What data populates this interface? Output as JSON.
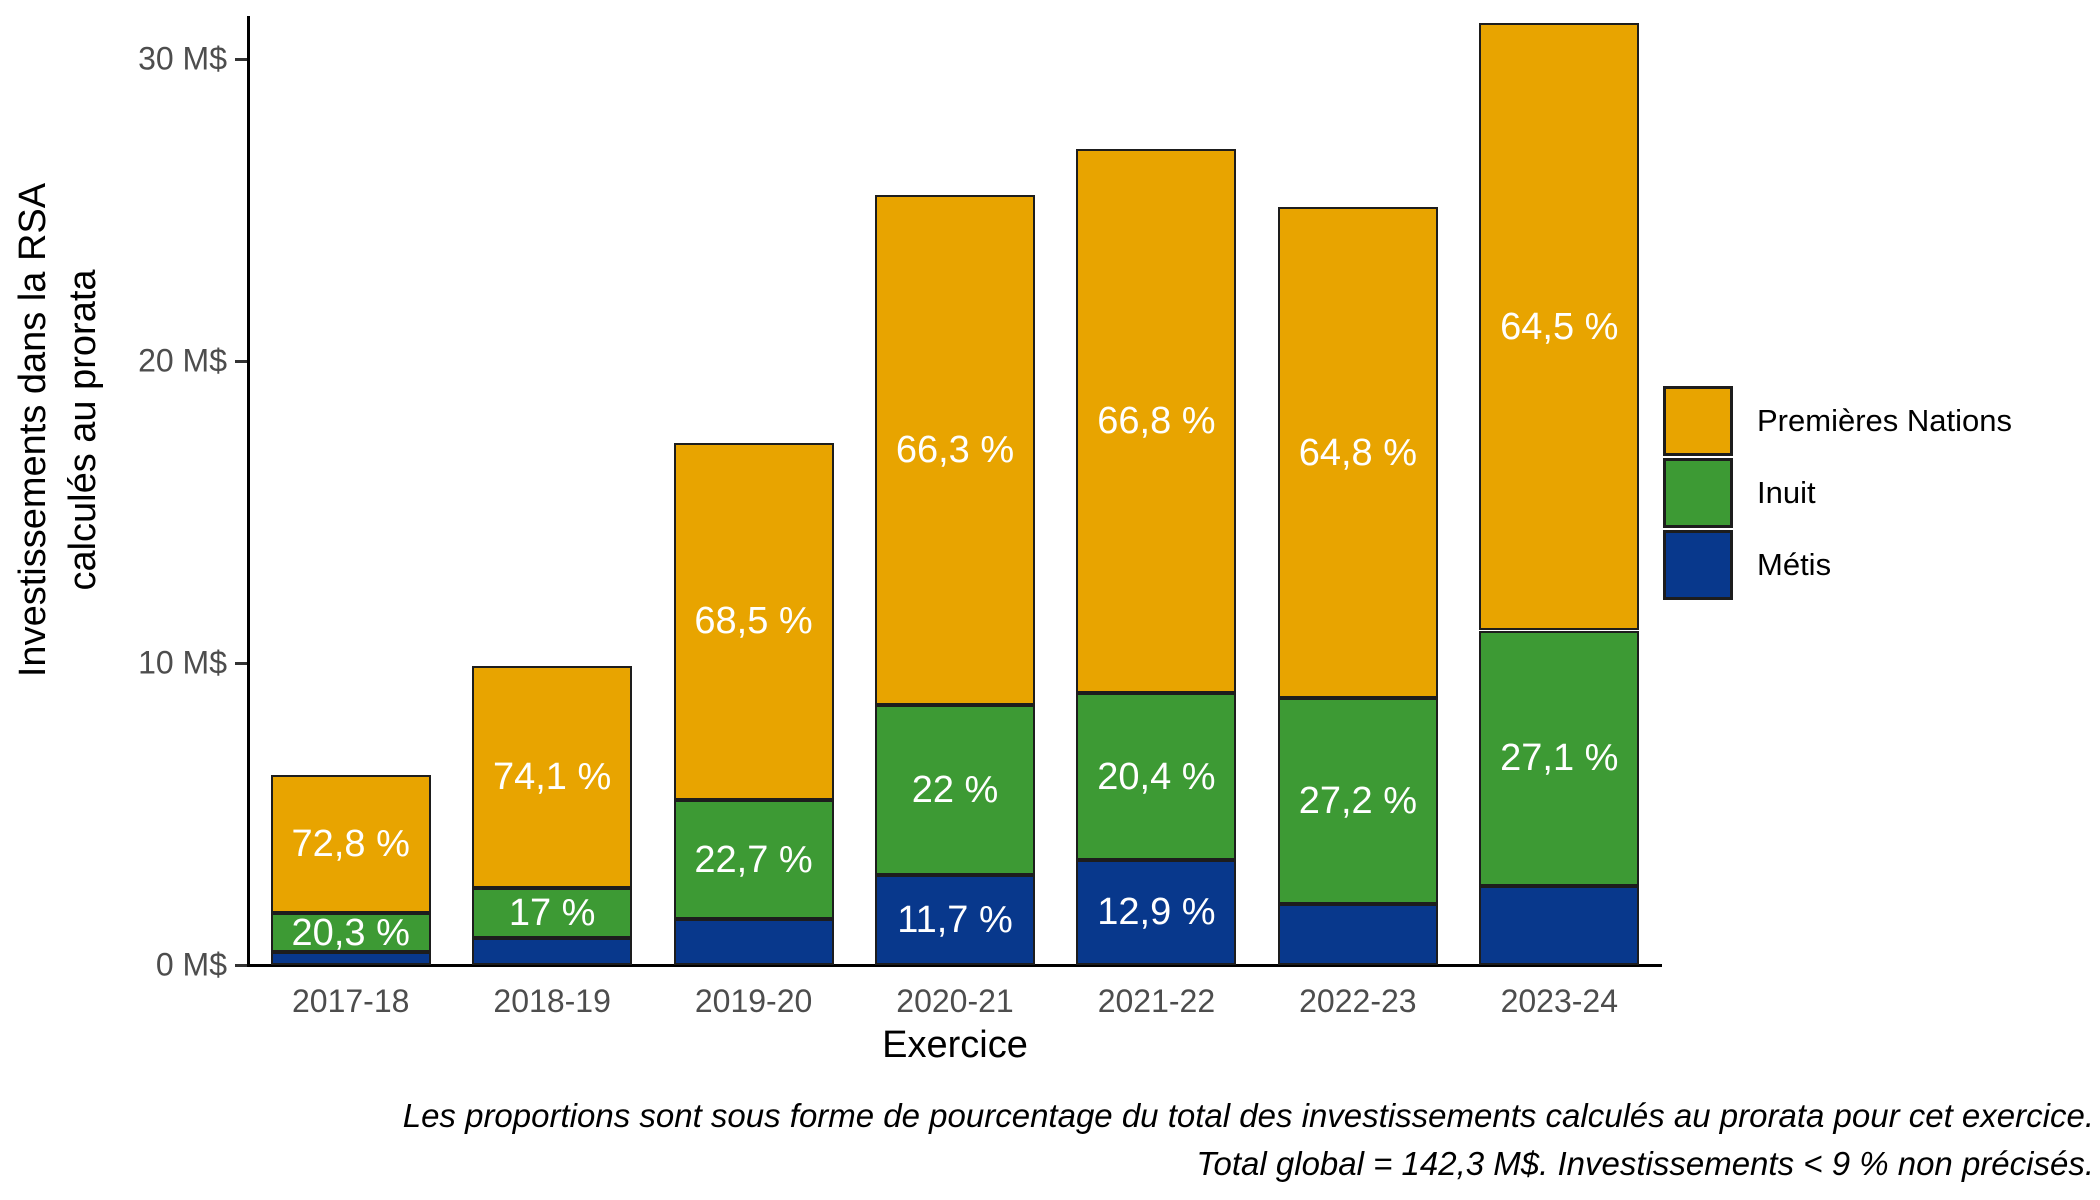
{
  "chart_data": {
    "type": "bar",
    "stacked": true,
    "xlabel": "Exercice",
    "ylabel_line1": "Investissements dans la RSA",
    "ylabel_line2": "calculés au prorata",
    "unit": "M$",
    "categories": [
      "2017-18",
      "2018-19",
      "2019-20",
      "2020-21",
      "2021-22",
      "2022-23",
      "2023-24"
    ],
    "totals_m": [
      6.3,
      9.9,
      17.3,
      25.5,
      27.0,
      25.1,
      31.2
    ],
    "series": [
      {
        "name": "Premières Nations",
        "color": "#E8A400",
        "percents": [
          72.8,
          74.1,
          68.5,
          66.3,
          66.8,
          64.8,
          64.5
        ],
        "labels": [
          "72,8 %",
          "74,1 %",
          "68,5 %",
          "66,3 %",
          "66,8 %",
          "64,8 %",
          "64,5 %"
        ]
      },
      {
        "name": "Inuit",
        "color": "#3D9A34",
        "percents": [
          20.3,
          17.0,
          22.7,
          22.0,
          20.4,
          27.2,
          27.1
        ],
        "labels": [
          "20,3 %",
          "17 %",
          "22,7 %",
          "22 %",
          "20,4 %",
          "27,2 %",
          "27,1 %"
        ]
      },
      {
        "name": "Métis",
        "color": "#08388C",
        "percents": [
          6.9,
          8.9,
          8.8,
          11.7,
          12.9,
          8.0,
          8.4
        ],
        "labels": [
          "",
          "",
          "",
          "11,7 %",
          "12,9 %",
          "",
          ""
        ]
      }
    ],
    "y_ticks": [
      {
        "label": "0 M$",
        "value": 0
      },
      {
        "label": "10 M$",
        "value": 10
      },
      {
        "label": "20 M$",
        "value": 20
      },
      {
        "label": "30 M$",
        "value": 30
      }
    ],
    "ylim": [
      0,
      31.5
    ],
    "grid": false,
    "legend_position": "right",
    "caption_line1": "Les proportions sont sous forme de pourcentage du total des investissements calculés au prorata pour cet exercice.",
    "caption_line2": "Total global = 142,3 M$. Investissements < 9 % non précisés.",
    "colors": {
      "bar_outline": "#1D1D1D",
      "axis": "#000000",
      "tick_text": "#4D4D4D",
      "bar_label_text": "#FFFFFF"
    }
  }
}
